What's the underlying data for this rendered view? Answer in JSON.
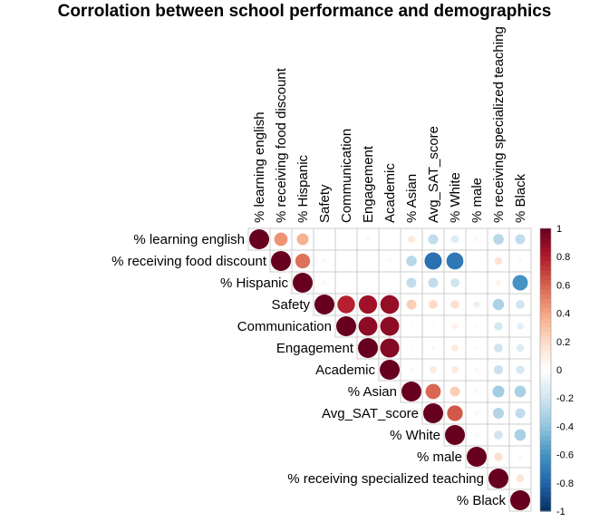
{
  "chart_data": {
    "type": "heatmap",
    "style": "upper-triangular correlation matrix with circle markers (size and color by value)",
    "title": "Corrolation between school performance and demographics",
    "variables": [
      "% learning english",
      "% receiving food discount",
      "% Hispanic",
      "Safety",
      "Communication",
      "Engagement",
      "Academic",
      "% Asian",
      "Avg_SAT_score",
      "% White",
      "% male",
      "% receiving specialized teaching",
      "% Black"
    ],
    "matrix": [
      [
        1.0,
        0.45,
        0.35,
        0.03,
        0.03,
        0.05,
        0.02,
        0.13,
        -0.25,
        -0.15,
        0.05,
        -0.28,
        -0.25
      ],
      [
        0.45,
        1.0,
        0.55,
        0.05,
        -0.02,
        -0.02,
        -0.04,
        -0.28,
        -0.75,
        -0.72,
        0.0,
        0.15,
        -0.05
      ],
      [
        0.35,
        0.55,
        1.0,
        0.05,
        0.0,
        0.0,
        -0.02,
        -0.25,
        -0.25,
        -0.2,
        0.02,
        0.08,
        -0.6
      ],
      [
        0.03,
        0.05,
        0.05,
        1.0,
        0.78,
        0.85,
        0.88,
        0.25,
        0.2,
        0.18,
        -0.1,
        -0.32,
        -0.2
      ],
      [
        0.03,
        -0.02,
        0.0,
        0.78,
        1.0,
        0.9,
        0.9,
        0.03,
        0.03,
        0.08,
        -0.03,
        -0.18,
        -0.12
      ],
      [
        0.05,
        -0.02,
        0.0,
        0.85,
        0.9,
        1.0,
        0.92,
        0.03,
        0.05,
        0.12,
        -0.03,
        -0.2,
        -0.15
      ],
      [
        0.02,
        -0.04,
        -0.02,
        0.88,
        0.9,
        0.92,
        1.0,
        0.05,
        0.12,
        0.12,
        -0.05,
        -0.22,
        -0.18
      ],
      [
        0.13,
        -0.28,
        -0.25,
        0.25,
        0.03,
        0.03,
        0.05,
        1.0,
        0.58,
        0.25,
        -0.05,
        -0.35,
        -0.33
      ],
      [
        -0.25,
        -0.75,
        -0.25,
        0.2,
        0.03,
        0.05,
        0.12,
        0.58,
        1.0,
        0.62,
        -0.05,
        -0.3,
        -0.25
      ],
      [
        -0.15,
        -0.72,
        -0.2,
        0.18,
        0.08,
        0.12,
        0.12,
        0.25,
        0.62,
        1.0,
        -0.05,
        -0.2,
        -0.33
      ],
      [
        0.05,
        0.0,
        0.02,
        -0.1,
        -0.03,
        -0.03,
        -0.05,
        -0.05,
        -0.05,
        -0.05,
        1.0,
        0.18,
        -0.05
      ],
      [
        -0.28,
        0.15,
        0.08,
        -0.32,
        -0.18,
        -0.2,
        -0.22,
        -0.35,
        -0.3,
        -0.2,
        0.18,
        1.0,
        0.15
      ],
      [
        -0.25,
        -0.05,
        -0.6,
        -0.2,
        -0.12,
        -0.15,
        -0.18,
        -0.33,
        -0.25,
        -0.33,
        -0.05,
        0.15,
        1.0
      ]
    ],
    "colorbar": {
      "ticks": [
        "1",
        "0.8",
        "0.6",
        "0.4",
        "0.2",
        "0",
        "-0.2",
        "-0.4",
        "-0.6",
        "-0.8",
        "-1"
      ],
      "range": [
        -1,
        1
      ],
      "colors": [
        "#67001F",
        "#B2182B",
        "#D6604D",
        "#F4A582",
        "#FDDBC7",
        "#FFFFFF",
        "#D1E5F0",
        "#92C5DE",
        "#4393C3",
        "#2166AC",
        "#053061"
      ]
    },
    "grid": true,
    "legend_placement": "right"
  }
}
